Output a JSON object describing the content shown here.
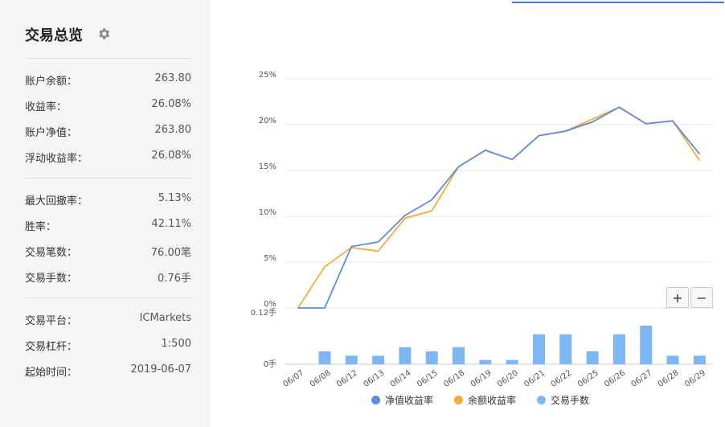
{
  "summary": {
    "title": "交易总览",
    "rows": [
      {
        "label": "账户余额：",
        "value": "263.80"
      },
      {
        "label": "收益率：",
        "value": "26.08%"
      },
      {
        "label": "账户净值：",
        "value": "263.80"
      },
      {
        "label": "浮动收益率：",
        "value": "26.08%"
      },
      {
        "label": "最大回撤率：",
        "value": "5.13%"
      },
      {
        "label": "胜率：",
        "value": "42.11%"
      },
      {
        "label": "交易笔数：",
        "value": "76.00笔"
      },
      {
        "label": "交易手数：",
        "value": "0.76手"
      },
      {
        "label": "交易平台：",
        "value": "ICMarkets"
      },
      {
        "label": "交易杠杆：",
        "value": "1:500"
      },
      {
        "label": "起始时间：",
        "value": "2019-06-07"
      }
    ]
  },
  "zoom": {
    "in_label": "+",
    "out_label": "−"
  },
  "colors": {
    "net": "#5b8ee0",
    "balance": "#f5ab35",
    "lots": "#7db6f2"
  },
  "chart_data": [
    {
      "type": "line",
      "categories": [
        "06/07",
        "06/08",
        "06/12",
        "06/13",
        "06/14",
        "06/15",
        "06/18",
        "06/19",
        "06/20",
        "06/21",
        "06/22",
        "06/25",
        "06/26",
        "06/27",
        "06/28",
        "06/29"
      ],
      "yticks": [
        "25%",
        "20%",
        "15%",
        "10%",
        "5%",
        "0%"
      ],
      "ylim": [
        0,
        25
      ],
      "grid": true,
      "series": [
        {
          "name": "净值收益率",
          "values": [
            0,
            0,
            6.7,
            7.2,
            10.1,
            11.8,
            15.4,
            17.2,
            16.2,
            18.8,
            19.3,
            20.3,
            21.9,
            20.1,
            20.4,
            16.8
          ]
        },
        {
          "name": "余额收益率",
          "values": [
            0,
            4.5,
            6.6,
            6.2,
            9.8,
            10.6,
            15.4,
            17.2,
            16.2,
            18.8,
            19.3,
            20.6,
            21.9,
            20.1,
            20.4,
            16.1
          ]
        }
      ]
    },
    {
      "type": "bar",
      "categories": [
        "06/07",
        "06/08",
        "06/12",
        "06/13",
        "06/14",
        "06/15",
        "06/18",
        "06/19",
        "06/20",
        "06/21",
        "06/22",
        "06/25",
        "06/26",
        "06/27",
        "06/28",
        "06/29"
      ],
      "yticks": [
        "0.12手",
        "0手"
      ],
      "ylim": [
        0,
        0.12
      ],
      "series": [
        {
          "name": "交易手数",
          "values": [
            0,
            0.03,
            0.02,
            0.02,
            0.04,
            0.03,
            0.04,
            0.01,
            0.01,
            0.07,
            0.07,
            0.03,
            0.07,
            0.09,
            0.02,
            0.02
          ]
        }
      ]
    }
  ]
}
